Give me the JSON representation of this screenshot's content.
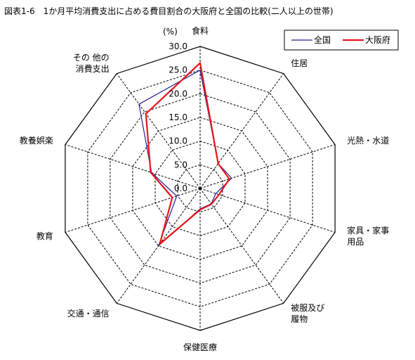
{
  "chart_data": {
    "type": "radar",
    "title": "図表1-6　1か月平均消費支出に占める費目割合の大阪府と全国の比較(二人以上の世帯)",
    "unit_label": "(%)",
    "axes": [
      {
        "label": [
          "食料"
        ]
      },
      {
        "label": [
          "住居"
        ]
      },
      {
        "label": [
          "光熱・水道"
        ]
      },
      {
        "label": [
          "家具・家事",
          "用品"
        ]
      },
      {
        "label": [
          "被服及び",
          "履物"
        ]
      },
      {
        "label": [
          "保健医療"
        ]
      },
      {
        "label": [
          "交通・通信"
        ]
      },
      {
        "label": [
          "教育"
        ]
      },
      {
        "label": [
          "教養娯楽"
        ]
      },
      {
        "label": [
          "その 他の",
          "消費支出"
        ]
      }
    ],
    "rlim": [
      0,
      30
    ],
    "ticks": [
      "0.0",
      "5.0",
      "10.0",
      "15.0",
      "20.0",
      "25.0",
      "30.0"
    ],
    "grid": true,
    "legend_position": "top-right",
    "series": [
      {
        "name": "全国",
        "color": "#1f1f8f",
        "values": [
          25.0,
          6.5,
          7.0,
          3.5,
          4.0,
          4.3,
          15.0,
          5.2,
          10.8,
          22.0
        ]
      },
      {
        "name": "大阪府",
        "color": "#e8141c",
        "values": [
          26.5,
          6.5,
          6.5,
          4.2,
          4.1,
          4.5,
          14.5,
          6.2,
          11.0,
          19.5
        ]
      }
    ]
  }
}
